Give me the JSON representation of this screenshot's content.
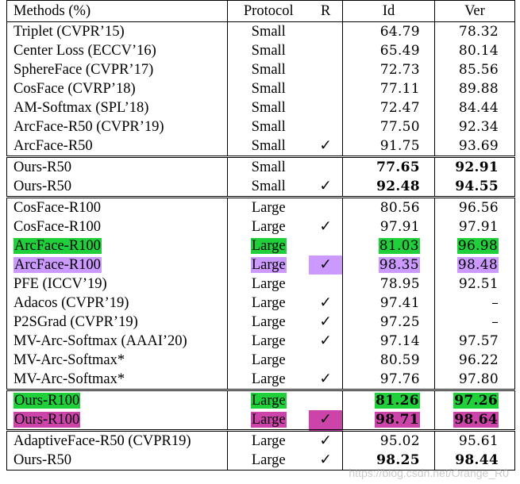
{
  "header": {
    "method": "Methods (%)",
    "protocol": "Protocol",
    "r": "R",
    "id": "Id",
    "ver": "Ver"
  },
  "check_symbol": "✓",
  "highlight_colors": {
    "green": "#1fd03a",
    "violet": "#cc99ff",
    "magenta": "#cc44aa"
  },
  "groups": [
    {
      "rows": [
        {
          "method": "Triplet (CVPR’15)",
          "protocol": "Small",
          "r": "",
          "id": "64.79",
          "ver": "78.32"
        },
        {
          "method": "Center Loss (ECCV’16)",
          "protocol": "Small",
          "r": "",
          "id": "65.49",
          "ver": "80.14"
        },
        {
          "method": "SphereFace (CVPR’17)",
          "protocol": "Small",
          "r": "",
          "id": "72.73",
          "ver": "85.56"
        },
        {
          "method": "CosFace (CVRP’18)",
          "protocol": "Small",
          "r": "",
          "id": "77.11",
          "ver": "89.88"
        },
        {
          "method": "AM-Softmax (SPL’18)",
          "protocol": "Small",
          "r": "",
          "id": "72.47",
          "ver": "84.44"
        },
        {
          "method": "ArcFace-R50 (CVPR’19)",
          "protocol": "Small",
          "r": "",
          "id": "77.50",
          "ver": "92.34"
        },
        {
          "method": "ArcFace-R50",
          "protocol": "Small",
          "r": "✓",
          "id": "91.75",
          "ver": "93.69"
        }
      ]
    },
    {
      "rows": [
        {
          "method": "Ours-R50",
          "protocol": "Small",
          "r": "",
          "id": "77.65",
          "ver": "92.91",
          "bold": true
        },
        {
          "method": "Ours-R50",
          "protocol": "Small",
          "r": "✓",
          "id": "92.48",
          "ver": "94.55",
          "bold": true
        }
      ]
    },
    {
      "rows": [
        {
          "method": "CosFace-R100",
          "protocol": "Large",
          "r": "",
          "id": "80.56",
          "ver": "96.56"
        },
        {
          "method": "CosFace-R100",
          "protocol": "Large",
          "r": "✓",
          "id": "97.91",
          "ver": "97.91"
        },
        {
          "method": "ArcFace-R100",
          "protocol": "Large",
          "r": "",
          "id": "81.03",
          "ver": "96.98",
          "highlight": "green"
        },
        {
          "method": "ArcFace-R100",
          "protocol": "Large",
          "r": "✓",
          "id": "98.35",
          "ver": "98.48",
          "highlight": "violet"
        },
        {
          "method": "PFE (ICCV’19)",
          "protocol": "Large",
          "r": "",
          "id": "78.95",
          "ver": "92.51"
        },
        {
          "method": "Adacos (CVPR’19)",
          "protocol": "Large",
          "r": "✓",
          "id": "97.41",
          "ver": "–"
        },
        {
          "method": "P2SGrad (CVPR’19)",
          "protocol": "Large",
          "r": "✓",
          "id": "97.25",
          "ver": "–"
        },
        {
          "method": "MV-Arc-Softmax (AAAI’20)",
          "protocol": "Large",
          "r": "✓",
          "id": "97.14",
          "ver": "97.57"
        },
        {
          "method": "MV-Arc-Softmax*",
          "protocol": "Large",
          "r": "",
          "id": "80.59",
          "ver": "96.22"
        },
        {
          "method": "MV-Arc-Softmax*",
          "protocol": "Large",
          "r": "✓",
          "id": "97.76",
          "ver": "97.80"
        }
      ]
    },
    {
      "rows": [
        {
          "method": "Ours-R100",
          "protocol": "Large",
          "r": "",
          "id": "81.26",
          "ver": "97.26",
          "bold": true,
          "highlight": "green"
        },
        {
          "method": "Ours-R100",
          "protocol": "Large",
          "r": "✓",
          "id": "98.71",
          "ver": "98.64",
          "bold": true,
          "highlight": "magenta"
        }
      ]
    },
    {
      "rows": [
        {
          "method": "AdaptiveFace-R50 (CVPR19)",
          "protocol": "Large",
          "r": "✓",
          "id": "95.02",
          "ver": "95.61"
        },
        {
          "method": "Ours-R50",
          "protocol": "Large",
          "r": "✓",
          "id": "98.25",
          "ver": "98.44",
          "bold": true
        }
      ]
    }
  ],
  "watermark": "https://blog.csdn.net/Orange_R0"
}
